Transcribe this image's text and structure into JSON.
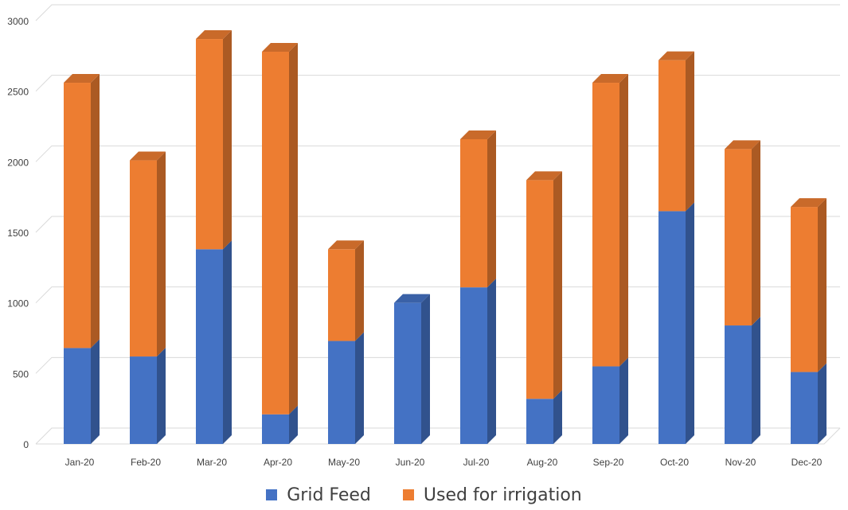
{
  "chart_data": {
    "type": "bar",
    "stacked": true,
    "style": "3d-column",
    "categories": [
      "Jan-20",
      "Feb-20",
      "Mar-20",
      "Apr-20",
      "May-20",
      "Jun-20",
      "Jul-20",
      "Aug-20",
      "Sep-20",
      "Oct-20",
      "Nov-20",
      "Dec-20"
    ],
    "series": [
      {
        "name": "Grid Feed",
        "color": "#4472C4",
        "values": [
          680,
          620,
          1380,
          210,
          730,
          1000,
          1110,
          320,
          550,
          1650,
          840,
          510
        ]
      },
      {
        "name": "Used for irrigation",
        "color": "#ED7D31",
        "values": [
          1880,
          1390,
          1490,
          2570,
          650,
          0,
          1050,
          1550,
          2010,
          1070,
          1250,
          1170
        ]
      }
    ],
    "title": "",
    "xlabel": "",
    "ylabel": "",
    "ylim": [
      0,
      3000
    ],
    "yticks": [
      0,
      500,
      1000,
      1500,
      2000,
      2500,
      3000
    ],
    "grid": true,
    "legend_position": "bottom"
  }
}
